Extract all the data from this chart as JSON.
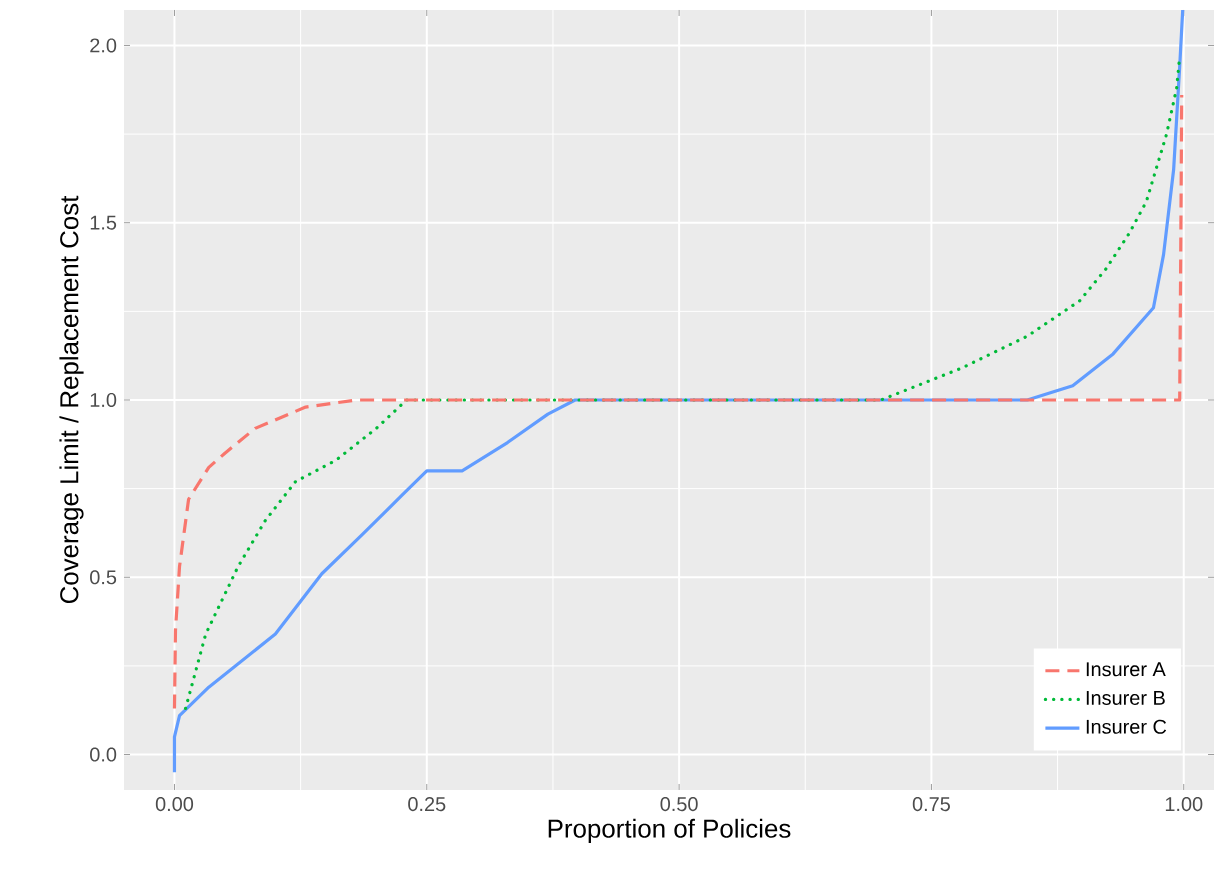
{
  "chart_data": {
    "type": "line",
    "xlabel": "Proportion of Policies",
    "ylabel": "Coverage Limit / Replacement Cost",
    "xlim": [
      -0.05,
      1.03
    ],
    "ylim": [
      -0.1,
      2.1
    ],
    "xticks": [
      {
        "value": 0,
        "label": "0.00"
      },
      {
        "value": 0.25,
        "label": "0.25"
      },
      {
        "value": 0.5,
        "label": "0.50"
      },
      {
        "value": 0.75,
        "label": "0.75"
      },
      {
        "value": 1,
        "label": "1.00"
      }
    ],
    "yticks": [
      {
        "value": 0,
        "label": "0.0"
      },
      {
        "value": 0.5,
        "label": "0.5"
      },
      {
        "value": 1,
        "label": "1.0"
      },
      {
        "value": 1.5,
        "label": "1.5"
      },
      {
        "value": 2,
        "label": "2.0"
      }
    ],
    "grid": true,
    "legend": "bottom right",
    "series": [
      {
        "name": "Insurer A",
        "color": "#f8766d",
        "line_style": "dashed",
        "x": [
          0.0,
          0.001,
          0.005,
          0.014,
          0.034,
          0.05,
          0.08,
          0.13,
          0.18,
          0.25,
          0.85,
          0.996,
          0.997,
          0.998
        ],
        "values": [
          0.13,
          0.35,
          0.53,
          0.72,
          0.81,
          0.85,
          0.92,
          0.98,
          1.0,
          1.0,
          1.0,
          1.0,
          1.4,
          1.86
        ]
      },
      {
        "name": "Insurer B",
        "color": "#00ba38",
        "line_style": "dotted",
        "x": [
          0.011,
          0.031,
          0.063,
          0.09,
          0.12,
          0.16,
          0.2,
          0.23,
          0.7,
          0.78,
          0.845,
          0.897,
          0.923,
          0.946,
          0.963,
          0.983,
          0.993,
          0.996
        ],
        "values": [
          0.13,
          0.34,
          0.53,
          0.66,
          0.77,
          0.83,
          0.92,
          1.0,
          1.0,
          1.09,
          1.18,
          1.28,
          1.37,
          1.47,
          1.56,
          1.75,
          1.88,
          1.97
        ]
      },
      {
        "name": "Insurer C",
        "color": "#619cff",
        "line_style": "solid",
        "x": [
          0.0,
          0.0,
          0.005,
          0.034,
          0.1,
          0.146,
          0.186,
          0.225,
          0.25,
          0.285,
          0.33,
          0.37,
          0.397,
          0.6,
          0.845,
          0.89,
          0.93,
          0.97,
          0.98,
          0.99,
          0.996,
          0.999
        ],
        "values": [
          -0.05,
          0.05,
          0.11,
          0.19,
          0.34,
          0.51,
          0.62,
          0.73,
          0.8,
          0.8,
          0.88,
          0.96,
          1.0,
          1.0,
          1.0,
          1.04,
          1.13,
          1.26,
          1.41,
          1.65,
          1.94,
          2.1
        ]
      }
    ]
  }
}
